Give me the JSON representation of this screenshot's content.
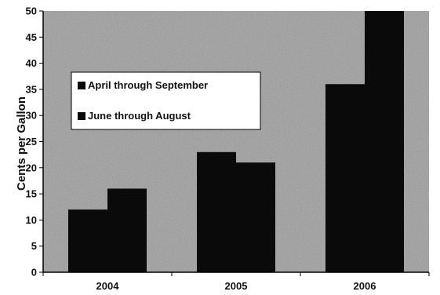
{
  "chart_data": {
    "type": "bar",
    "title": "",
    "xlabel": "",
    "ylabel": "Cents per Gallon",
    "categories": [
      "2004",
      "2005",
      "2006"
    ],
    "series": [
      {
        "name": "April through September",
        "values": [
          12,
          23,
          36
        ]
      },
      {
        "name": "June through August",
        "values": [
          16,
          21,
          50
        ]
      }
    ],
    "ylim": [
      0,
      50
    ],
    "yticks": [
      0,
      5,
      10,
      15,
      20,
      25,
      30,
      35,
      40,
      45,
      50
    ],
    "grid": false,
    "legend_position": "upper-left inside plot",
    "colors": {
      "bar": "#0a0a0a",
      "plot_background": "#9a9a9a",
      "legend_background": "#ffffff"
    }
  }
}
